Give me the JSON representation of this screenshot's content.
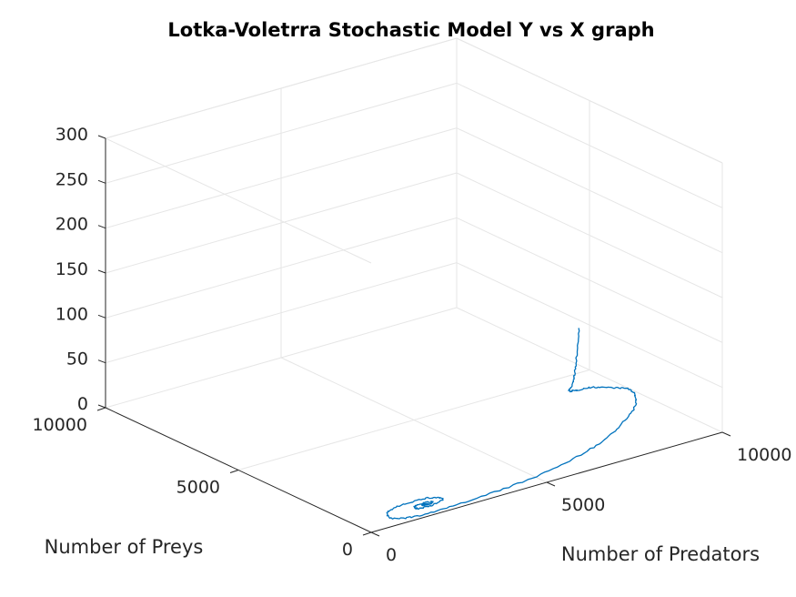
{
  "chart_data": {
    "type": "line",
    "title": "Lotka-Voletrra Stochastic Model Y vs X graph",
    "xlabel": "Number of Predators",
    "ylabel": "Number of Preys",
    "zlabel": "",
    "x_ticks": [
      "0",
      "5000",
      "10000"
    ],
    "y_ticks": [
      "0",
      "5000",
      "10000"
    ],
    "z_ticks": [
      "0",
      "50",
      "100",
      "150",
      "200",
      "250",
      "300"
    ],
    "xlim": [
      0,
      10000
    ],
    "ylim": [
      0,
      10000
    ],
    "zlim": [
      0,
      300
    ],
    "grid": true,
    "view": "3d",
    "line_color": "#0072bd",
    "series": [
      {
        "trajectory": [
          [
            6000,
            100,
            160
          ],
          [
            6200,
            500,
            110
          ],
          [
            6500,
            1000,
            80
          ],
          [
            7000,
            1800,
            55
          ],
          [
            7800,
            2600,
            35
          ],
          [
            8700,
            3200,
            20
          ],
          [
            9500,
            3400,
            8
          ],
          [
            9900,
            3300,
            2
          ],
          [
            9500,
            2600,
            1
          ],
          [
            8500,
            1800,
            1
          ],
          [
            7000,
            1000,
            1
          ],
          [
            5000,
            400,
            1
          ],
          [
            3000,
            150,
            1
          ],
          [
            1600,
            100,
            1
          ],
          [
            900,
            300,
            1
          ],
          [
            1000,
            700,
            1
          ],
          [
            1600,
            900,
            1
          ],
          [
            2300,
            850,
            1
          ],
          [
            2500,
            600,
            1
          ],
          [
            2100,
            450,
            1
          ],
          [
            1700,
            480,
            1
          ],
          [
            1700,
            620,
            1
          ],
          [
            2000,
            680,
            1
          ],
          [
            2200,
            600,
            1
          ],
          [
            2000,
            540,
            1
          ],
          [
            1900,
            590,
            1
          ],
          [
            2050,
            600,
            1
          ]
        ]
      }
    ]
  }
}
